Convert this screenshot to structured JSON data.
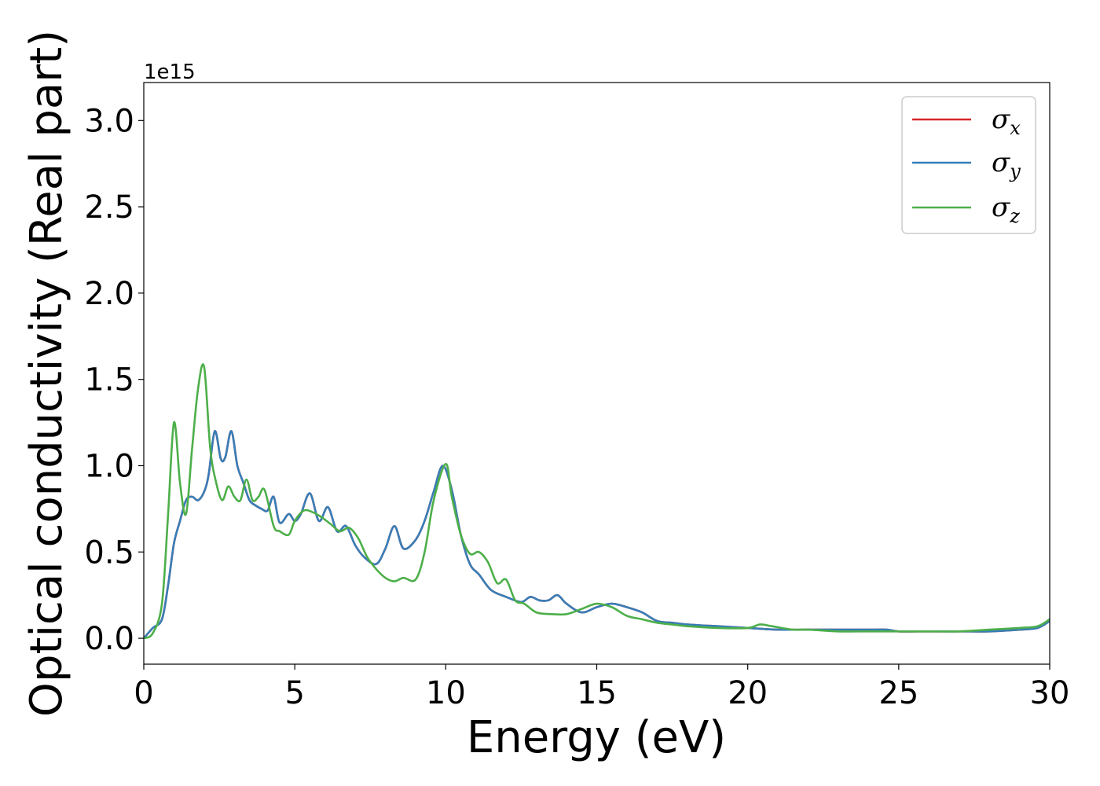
{
  "chart_data": {
    "type": "line",
    "title": "",
    "xlabel": "Energy (eV)",
    "ylabel": "Optical conductivity (Real part)",
    "y_offset_text": "1e15",
    "xlim": [
      0,
      30
    ],
    "ylim": [
      -0.15,
      3.22
    ],
    "xticks": [
      0,
      5,
      10,
      15,
      20,
      25,
      30
    ],
    "xtick_labels": [
      "0",
      "5",
      "10",
      "15",
      "20",
      "25",
      "30"
    ],
    "yticks": [
      0.0,
      0.5,
      1.0,
      1.5,
      2.0,
      2.5,
      3.0
    ],
    "ytick_labels": [
      "0.0",
      "0.5",
      "1.0",
      "1.5",
      "2.0",
      "2.5",
      "3.0"
    ],
    "grid": false,
    "legend_position": "top-right",
    "series": [
      {
        "name": "σx",
        "legend_symbol": "σ",
        "legend_subscript": "x",
        "color": "#d62728",
        "x": [
          0,
          0.3,
          0.6,
          0.8,
          1.0,
          1.2,
          1.4,
          1.6,
          1.8,
          2.0,
          2.15,
          2.35,
          2.55,
          2.7,
          2.9,
          3.1,
          3.3,
          3.5,
          3.7,
          3.9,
          4.1,
          4.3,
          4.5,
          4.8,
          5.0,
          5.2,
          5.5,
          5.8,
          6.1,
          6.4,
          6.7,
          7.0,
          7.3,
          7.7,
          8.0,
          8.3,
          8.6,
          9.0,
          9.3,
          9.6,
          9.9,
          10.2,
          10.5,
          10.8,
          11.1,
          11.5,
          12.0,
          12.5,
          12.8,
          13.1,
          13.4,
          13.7,
          14.0,
          14.5,
          15.0,
          15.5,
          16.0,
          16.5,
          17.0,
          17.5,
          18.0,
          19.0,
          20.0,
          21.0,
          22.0,
          23.0,
          24.0,
          24.6,
          25.0,
          26.0,
          27.0,
          28.0,
          29.0,
          29.6,
          30.0
        ],
        "values": [
          0.0,
          0.06,
          0.11,
          0.3,
          0.55,
          0.68,
          0.8,
          0.82,
          0.8,
          0.85,
          0.95,
          1.2,
          1.04,
          1.05,
          1.2,
          1.0,
          0.9,
          0.8,
          0.77,
          0.75,
          0.74,
          0.82,
          0.67,
          0.72,
          0.68,
          0.72,
          0.84,
          0.68,
          0.76,
          0.62,
          0.65,
          0.54,
          0.47,
          0.43,
          0.52,
          0.65,
          0.52,
          0.57,
          0.68,
          0.85,
          1.0,
          0.86,
          0.6,
          0.43,
          0.37,
          0.28,
          0.24,
          0.21,
          0.24,
          0.22,
          0.22,
          0.25,
          0.2,
          0.15,
          0.18,
          0.2,
          0.18,
          0.15,
          0.1,
          0.09,
          0.08,
          0.07,
          0.06,
          0.05,
          0.05,
          0.05,
          0.05,
          0.05,
          0.04,
          0.04,
          0.04,
          0.04,
          0.05,
          0.06,
          0.1
        ]
      },
      {
        "name": "σy",
        "legend_symbol": "σ",
        "legend_subscript": "y",
        "color": "#377eb8",
        "x": [
          0,
          0.3,
          0.6,
          0.8,
          1.0,
          1.2,
          1.4,
          1.6,
          1.8,
          2.0,
          2.15,
          2.35,
          2.55,
          2.7,
          2.9,
          3.1,
          3.3,
          3.5,
          3.7,
          3.9,
          4.1,
          4.3,
          4.5,
          4.8,
          5.0,
          5.2,
          5.5,
          5.8,
          6.1,
          6.4,
          6.7,
          7.0,
          7.3,
          7.7,
          8.0,
          8.3,
          8.6,
          9.0,
          9.3,
          9.6,
          9.9,
          10.2,
          10.5,
          10.8,
          11.1,
          11.5,
          12.0,
          12.5,
          12.8,
          13.1,
          13.4,
          13.7,
          14.0,
          14.5,
          15.0,
          15.5,
          16.0,
          16.5,
          17.0,
          17.5,
          18.0,
          19.0,
          20.0,
          21.0,
          22.0,
          23.0,
          24.0,
          24.6,
          25.0,
          26.0,
          27.0,
          28.0,
          29.0,
          29.6,
          30.0
        ],
        "values": [
          0.0,
          0.06,
          0.11,
          0.3,
          0.55,
          0.68,
          0.8,
          0.82,
          0.8,
          0.85,
          0.95,
          1.2,
          1.04,
          1.05,
          1.2,
          1.0,
          0.9,
          0.8,
          0.77,
          0.75,
          0.74,
          0.82,
          0.67,
          0.72,
          0.68,
          0.72,
          0.84,
          0.68,
          0.76,
          0.62,
          0.65,
          0.54,
          0.47,
          0.43,
          0.52,
          0.65,
          0.52,
          0.57,
          0.68,
          0.85,
          1.0,
          0.86,
          0.6,
          0.43,
          0.37,
          0.28,
          0.24,
          0.21,
          0.24,
          0.22,
          0.22,
          0.25,
          0.2,
          0.15,
          0.18,
          0.2,
          0.18,
          0.15,
          0.1,
          0.09,
          0.08,
          0.07,
          0.06,
          0.05,
          0.05,
          0.05,
          0.05,
          0.05,
          0.04,
          0.04,
          0.04,
          0.04,
          0.05,
          0.06,
          0.1
        ]
      },
      {
        "name": "σz",
        "legend_symbol": "σ",
        "legend_subscript": "z",
        "color": "#4daf4a",
        "x": [
          0,
          0.3,
          0.6,
          0.8,
          1.0,
          1.2,
          1.4,
          1.6,
          1.8,
          2.0,
          2.2,
          2.4,
          2.6,
          2.8,
          3.0,
          3.2,
          3.4,
          3.6,
          3.8,
          4.0,
          4.3,
          4.5,
          4.8,
          5.0,
          5.3,
          5.6,
          5.9,
          6.2,
          6.5,
          6.8,
          7.1,
          7.4,
          7.7,
          8.0,
          8.3,
          8.6,
          9.0,
          9.3,
          9.6,
          10.0,
          10.2,
          10.5,
          10.8,
          11.1,
          11.4,
          11.7,
          12.0,
          12.3,
          12.6,
          13.0,
          13.5,
          14.0,
          14.5,
          15.0,
          15.5,
          16.0,
          16.5,
          17.0,
          17.5,
          18.0,
          19.0,
          20.0,
          20.4,
          20.8,
          21.5,
          22.0,
          23.0,
          24.0,
          25.0,
          26.0,
          27.0,
          28.0,
          29.0,
          29.6,
          30.0
        ],
        "values": [
          0.0,
          0.03,
          0.2,
          0.7,
          1.25,
          0.9,
          0.72,
          1.1,
          1.45,
          1.57,
          1.1,
          0.9,
          0.8,
          0.88,
          0.82,
          0.8,
          0.92,
          0.8,
          0.82,
          0.86,
          0.65,
          0.62,
          0.6,
          0.68,
          0.74,
          0.73,
          0.7,
          0.66,
          0.62,
          0.64,
          0.58,
          0.47,
          0.4,
          0.35,
          0.33,
          0.35,
          0.34,
          0.5,
          0.8,
          1.01,
          0.82,
          0.6,
          0.49,
          0.5,
          0.44,
          0.32,
          0.34,
          0.22,
          0.2,
          0.15,
          0.14,
          0.14,
          0.17,
          0.2,
          0.18,
          0.13,
          0.11,
          0.09,
          0.08,
          0.07,
          0.06,
          0.06,
          0.08,
          0.07,
          0.05,
          0.05,
          0.04,
          0.04,
          0.04,
          0.04,
          0.04,
          0.05,
          0.06,
          0.07,
          0.11
        ]
      }
    ]
  }
}
